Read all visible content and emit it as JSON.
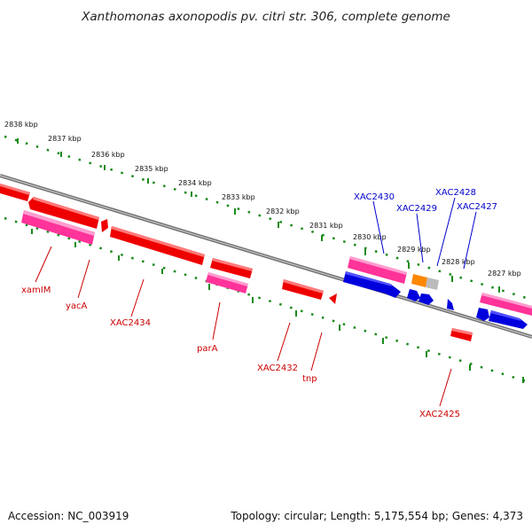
{
  "title": "Xanthomonas axonopodis pv. citri str. 306, complete genome",
  "footer": {
    "accession": "Accession: NC_003919",
    "topology": "Topology: circular; Length: 5,175,554 bp; Genes: 4,373"
  },
  "colors": {
    "axis": "#808080",
    "ticks": "#1a8a1a",
    "red": "#ee0000",
    "pink": "#ff3399",
    "blue": "#0000dd",
    "orange": "#ff8800",
    "grey": "#bbbbbb",
    "label_red": "#cc0000",
    "label_blue": "#0000cc"
  },
  "kbp_ticks": [
    "2838 kbp",
    "2837 kbp",
    "2836 kbp",
    "2835 kbp",
    "2834 kbp",
    "2833 kbp",
    "2832 kbp",
    "2831 kbp",
    "2830 kbp",
    "2829 kbp",
    "2828 kbp",
    "2827 kbp"
  ],
  "genes_top": [
    "XAC2430",
    "XAC2429",
    "XAC2428",
    "XAC2427"
  ],
  "genes_bottom": [
    "xamIM",
    "yacA",
    "XAC2434",
    "parA",
    "XAC2432",
    "tnp",
    "XAC2425"
  ]
}
